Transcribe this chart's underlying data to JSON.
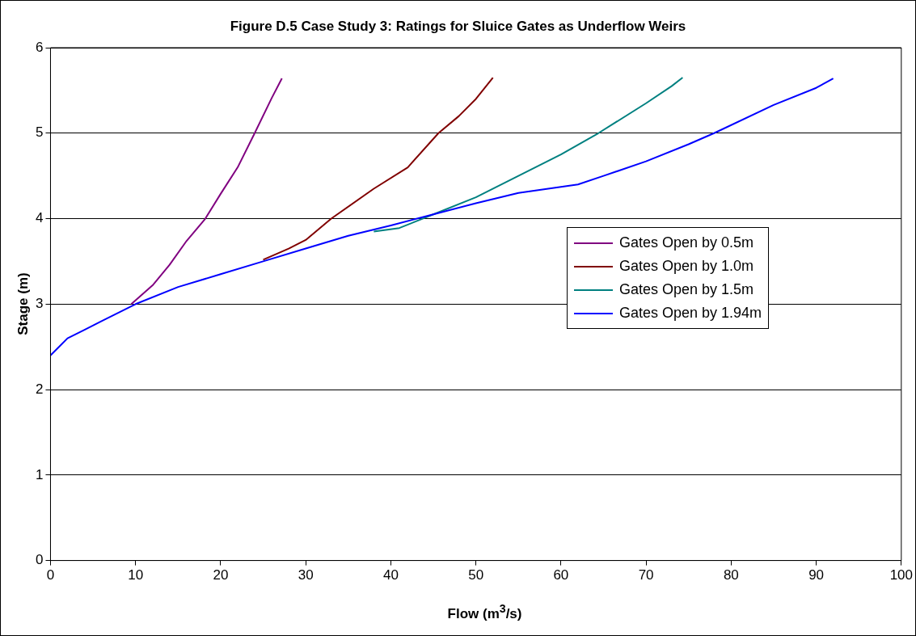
{
  "chart_data": {
    "type": "line",
    "title": "Figure D.5 Case Study 3: Ratings for Sluice Gates as Underflow Weirs",
    "xlabel": "Flow (m$^{3}$/s)",
    "ylabel": "Stage (m)",
    "xlim": [
      0,
      100
    ],
    "xticks": [
      0,
      10,
      20,
      30,
      40,
      50,
      60,
      70,
      80,
      90,
      100
    ],
    "ylim": [
      0,
      6
    ],
    "yticks": [
      0,
      1,
      2,
      3,
      4,
      5,
      6
    ],
    "grid": "y",
    "legend": "right",
    "marker": "none",
    "line_style": "solid",
    "series": [
      {
        "name": "Gates Open by 0.5m",
        "color": "#800080",
        "x": [
          9.5,
          12,
          14,
          16,
          18.2,
          20,
          22,
          24,
          26,
          27.2
        ],
        "values": [
          3.0,
          3.22,
          3.46,
          3.74,
          4.0,
          4.29,
          4.6,
          5.0,
          5.41,
          5.64
        ]
      },
      {
        "name": "Gates Open by 1.0m",
        "color": "#800000",
        "x": [
          25,
          28,
          30,
          33,
          38,
          42,
          45.6,
          48,
          50,
          52
        ],
        "values": [
          3.52,
          3.65,
          3.75,
          4.0,
          4.35,
          4.6,
          5.0,
          5.2,
          5.4,
          5.65
        ]
      },
      {
        "name": "Gates Open by 1.5m",
        "color": "#008080",
        "x": [
          38,
          41,
          45,
          50,
          55,
          60,
          64.4,
          70,
          73,
          74.3
        ],
        "values": [
          3.85,
          3.89,
          4.05,
          4.25,
          4.5,
          4.75,
          5.0,
          5.35,
          5.55,
          5.65
        ]
      },
      {
        "name": "Gates Open by 1.94m",
        "color": "#0000ff",
        "x": [
          0,
          1,
          2,
          4,
          6,
          8,
          10,
          15,
          20,
          25,
          30,
          35,
          40,
          45,
          50,
          55,
          62,
          65,
          70,
          75,
          78,
          85,
          90,
          92
        ],
        "values": [
          2.4,
          2.5,
          2.6,
          2.7,
          2.8,
          2.9,
          3.0,
          3.2,
          3.35,
          3.5,
          3.65,
          3.8,
          3.92,
          4.05,
          4.18,
          4.3,
          4.4,
          4.5,
          4.67,
          4.87,
          5.0,
          5.33,
          5.53,
          5.64
        ]
      }
    ]
  }
}
